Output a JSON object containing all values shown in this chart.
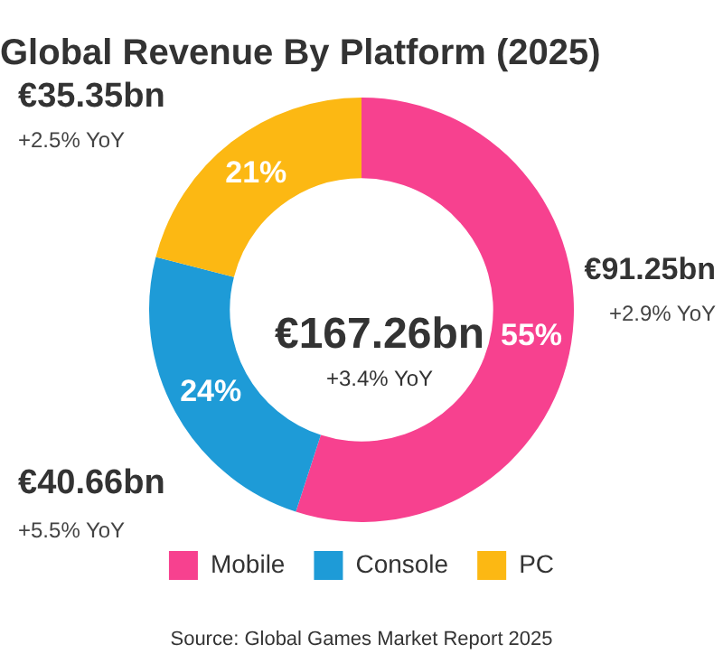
{
  "chart_data": {
    "type": "donut",
    "title": "Global Revenue By Platform (2025)",
    "categories": [
      "Mobile",
      "Console",
      "PC"
    ],
    "values": [
      55,
      24,
      21
    ],
    "colors": [
      "#f7418f",
      "#1e9bd7",
      "#fcb813"
    ],
    "value_labels": [
      "55%",
      "24%",
      "21%"
    ],
    "legend": "bottom",
    "annotations": [
      "€167.26bn",
      "+3.4% YoY",
      "€91.25bn",
      "+2.9% YoY",
      "€40.66bn",
      "+5.5% YoY",
      "€35.35bn",
      "+2.5% YoY",
      "Source: Global Games Market Report 2025"
    ]
  }
}
